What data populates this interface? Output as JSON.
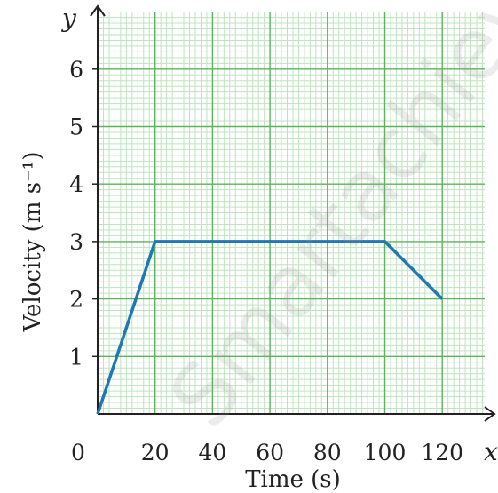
{
  "watermark": "Smartachieve",
  "chart_data": {
    "type": "line",
    "x": [
      0,
      20,
      100,
      120
    ],
    "y": [
      0,
      3,
      3,
      2
    ],
    "xlabel": "Time (s)",
    "ylabel": "Velocity (m s⁻¹)",
    "x_axis_letter": "x",
    "y_axis_letter": "y",
    "origin_label": "0",
    "x_ticks": [
      "20",
      "40",
      "60",
      "80",
      "100",
      "120"
    ],
    "y_ticks": [
      "1",
      "2",
      "3",
      "4",
      "5",
      "6"
    ],
    "xlim": [
      0,
      135
    ],
    "ylim": [
      0,
      7
    ],
    "grid": true,
    "colors": {
      "line": "#1f77b4",
      "grid_major": "#5ab55a",
      "grid_minor": "#bfe3bf"
    }
  }
}
